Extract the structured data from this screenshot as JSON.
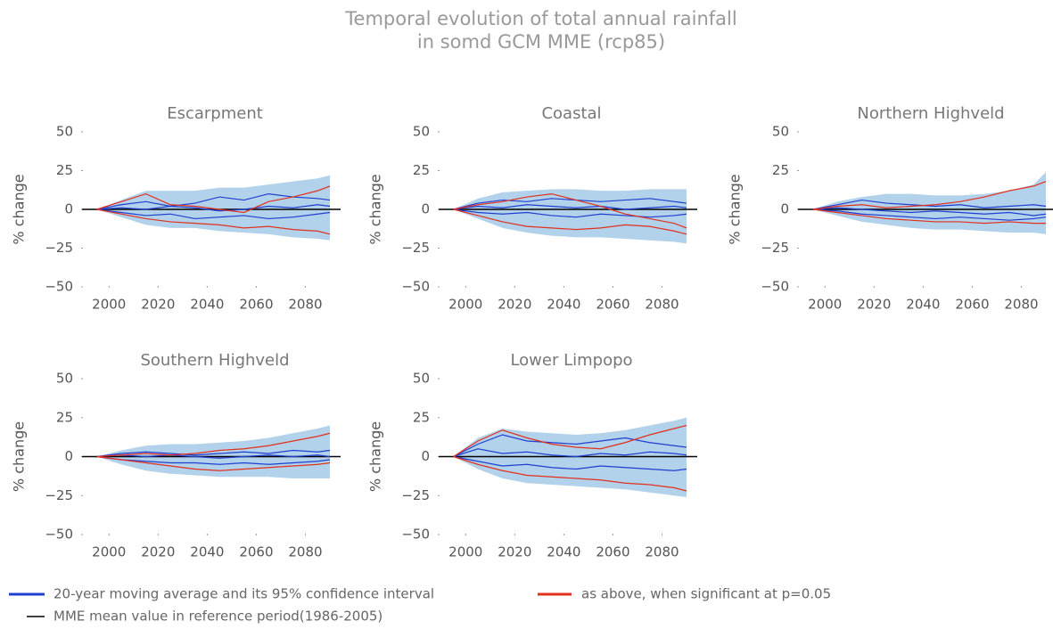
{
  "title": "Temporal evolution of total annual rainfall",
  "subtitle": "in somd GCM MME (rcp85)",
  "legend": [
    {
      "label": "20-year moving average and its 95% confidence interval",
      "color": "#1f3fd0"
    },
    {
      "label": "as above, when significant at p=0.05",
      "color": "#e0301e"
    },
    {
      "label": "MME mean value in reference period(1986-2005)",
      "color": "#000000"
    }
  ],
  "chart_data": [
    {
      "type": "line",
      "title": "Escarpment",
      "ylabel": "% change",
      "reference": 0,
      "xlim": [
        1989,
        2090
      ],
      "xticks": [
        2000,
        2020,
        2040,
        2060,
        2080
      ],
      "ylim": [
        -50,
        50
      ],
      "yticks": [
        {
          "value": -50,
          "label": "−50"
        },
        {
          "value": -25,
          "label": "−25"
        },
        0,
        25,
        50
      ],
      "x": [
        1995,
        2005,
        2015,
        2025,
        2035,
        2045,
        2055,
        2065,
        2075,
        2085,
        2090
      ],
      "band": {
        "color": "#7fb3dc",
        "lower": [
          0,
          -5,
          -10,
          -12,
          -12,
          -14,
          -15,
          -16,
          -18,
          -19,
          -20
        ],
        "upper": [
          0,
          6,
          12,
          12,
          12,
          14,
          14,
          16,
          18,
          20,
          22
        ]
      },
      "series": [
        {
          "color": "#1f3fd0",
          "values": [
            0,
            3,
            5,
            2,
            4,
            8,
            6,
            10,
            8,
            7,
            6
          ]
        },
        {
          "color": "#1f3fd0",
          "values": [
            0,
            -2,
            -4,
            -3,
            -6,
            -5,
            -4,
            -6,
            -5,
            -3,
            -2
          ]
        },
        {
          "color": "#1f3fd0",
          "values": [
            0,
            1,
            0,
            2,
            1,
            -1,
            0,
            2,
            1,
            3,
            2
          ]
        },
        {
          "color": "#e0301e",
          "values": [
            0,
            5,
            10,
            3,
            2,
            0,
            -2,
            5,
            8,
            12,
            15
          ]
        },
        {
          "color": "#e0301e",
          "values": [
            0,
            -3,
            -6,
            -8,
            -9,
            -10,
            -12,
            -11,
            -13,
            -14,
            -16
          ]
        }
      ]
    },
    {
      "type": "line",
      "title": "Coastal",
      "ylabel": "% change",
      "reference": 0,
      "xlim": [
        1989,
        2090
      ],
      "xticks": [
        2000,
        2020,
        2040,
        2060,
        2080
      ],
      "ylim": [
        -50,
        50
      ],
      "yticks": [
        {
          "value": -50,
          "label": "−50"
        },
        {
          "value": -25,
          "label": "−25"
        },
        0,
        25,
        50
      ],
      "x": [
        1995,
        2005,
        2015,
        2025,
        2035,
        2045,
        2055,
        2065,
        2075,
        2085,
        2090
      ],
      "band": {
        "color": "#7fb3dc",
        "lower": [
          0,
          -6,
          -12,
          -15,
          -17,
          -18,
          -18,
          -19,
          -20,
          -21,
          -22
        ],
        "upper": [
          0,
          7,
          11,
          12,
          13,
          13,
          12,
          12,
          13,
          13,
          13
        ]
      },
      "series": [
        {
          "color": "#1f3fd0",
          "values": [
            0,
            4,
            6,
            5,
            7,
            6,
            5,
            6,
            7,
            5,
            4
          ]
        },
        {
          "color": "#1f3fd0",
          "values": [
            0,
            -2,
            -3,
            -2,
            -4,
            -5,
            -3,
            -4,
            -5,
            -4,
            -3
          ]
        },
        {
          "color": "#1f3fd0",
          "values": [
            0,
            2,
            1,
            3,
            2,
            1,
            2,
            0,
            1,
            2,
            1
          ]
        },
        {
          "color": "#e0301e",
          "values": [
            0,
            -4,
            -8,
            -11,
            -12,
            -13,
            -12,
            -10,
            -11,
            -14,
            -16
          ]
        },
        {
          "color": "#e0301e",
          "values": [
            0,
            3,
            5,
            8,
            10,
            6,
            2,
            -3,
            -6,
            -9,
            -12
          ]
        }
      ]
    },
    {
      "type": "line",
      "title": "Northern Highveld",
      "ylabel": "% change",
      "reference": 0,
      "xlim": [
        1989,
        2090
      ],
      "xticks": [
        2000,
        2020,
        2040,
        2060,
        2080
      ],
      "ylim": [
        -50,
        50
      ],
      "yticks": [
        {
          "value": -50,
          "label": "−50"
        },
        {
          "value": -25,
          "label": "−25"
        },
        0,
        25,
        50
      ],
      "x": [
        1995,
        2005,
        2015,
        2025,
        2035,
        2045,
        2055,
        2065,
        2075,
        2085,
        2090
      ],
      "band": {
        "color": "#7fb3dc",
        "lower": [
          0,
          -4,
          -8,
          -10,
          -12,
          -13,
          -13,
          -14,
          -15,
          -15,
          -16
        ],
        "upper": [
          0,
          5,
          8,
          10,
          10,
          9,
          9,
          10,
          12,
          16,
          24
        ]
      },
      "series": [
        {
          "color": "#1f3fd0",
          "values": [
            0,
            3,
            6,
            4,
            3,
            2,
            3,
            1,
            2,
            3,
            2
          ]
        },
        {
          "color": "#1f3fd0",
          "values": [
            0,
            -1,
            -3,
            -4,
            -5,
            -6,
            -5,
            -6,
            -7,
            -6,
            -5
          ]
        },
        {
          "color": "#1f3fd0",
          "values": [
            0,
            1,
            0,
            -1,
            -2,
            -1,
            -2,
            -3,
            -2,
            -4,
            -3
          ]
        },
        {
          "color": "#e0301e",
          "values": [
            0,
            2,
            3,
            1,
            2,
            3,
            5,
            8,
            12,
            15,
            18
          ]
        },
        {
          "color": "#e0301e",
          "values": [
            0,
            -2,
            -4,
            -6,
            -7,
            -8,
            -8,
            -9,
            -8,
            -9,
            -9
          ]
        }
      ]
    },
    {
      "type": "line",
      "title": "Southern Highveld",
      "ylabel": "% change",
      "reference": 0,
      "xlim": [
        1989,
        2090
      ],
      "xticks": [
        2000,
        2020,
        2040,
        2060,
        2080
      ],
      "ylim": [
        -50,
        50
      ],
      "yticks": [
        {
          "value": -50,
          "label": "−50"
        },
        {
          "value": -25,
          "label": "−25"
        },
        0,
        25,
        50
      ],
      "x": [
        1995,
        2005,
        2015,
        2025,
        2035,
        2045,
        2055,
        2065,
        2075,
        2085,
        2090
      ],
      "band": {
        "color": "#7fb3dc",
        "lower": [
          0,
          -5,
          -9,
          -11,
          -12,
          -13,
          -13,
          -13,
          -14,
          -14,
          -14
        ],
        "upper": [
          0,
          4,
          7,
          8,
          8,
          9,
          10,
          12,
          15,
          18,
          20
        ]
      },
      "series": [
        {
          "color": "#1f3fd0",
          "values": [
            0,
            2,
            3,
            2,
            1,
            2,
            3,
            2,
            4,
            3,
            4
          ]
        },
        {
          "color": "#1f3fd0",
          "values": [
            0,
            -2,
            -3,
            -4,
            -4,
            -5,
            -4,
            -5,
            -4,
            -3,
            -2
          ]
        },
        {
          "color": "#1f3fd0",
          "values": [
            0,
            1,
            0,
            1,
            0,
            -1,
            0,
            1,
            0,
            1,
            0
          ]
        },
        {
          "color": "#e0301e",
          "values": [
            0,
            1,
            2,
            1,
            2,
            4,
            5,
            7,
            10,
            13,
            15
          ]
        },
        {
          "color": "#e0301e",
          "values": [
            0,
            -2,
            -4,
            -6,
            -8,
            -9,
            -8,
            -7,
            -6,
            -5,
            -4
          ]
        }
      ]
    },
    {
      "type": "line",
      "title": "Lower Limpopo",
      "ylabel": "% change",
      "reference": 0,
      "xlim": [
        1989,
        2090
      ],
      "xticks": [
        2000,
        2020,
        2040,
        2060,
        2080
      ],
      "ylim": [
        -50,
        50
      ],
      "yticks": [
        {
          "value": -50,
          "label": "−50"
        },
        {
          "value": -25,
          "label": "−25"
        },
        0,
        25,
        50
      ],
      "x": [
        1995,
        2005,
        2015,
        2025,
        2035,
        2045,
        2055,
        2065,
        2075,
        2085,
        2090
      ],
      "band": {
        "color": "#7fb3dc",
        "lower": [
          0,
          -8,
          -14,
          -17,
          -18,
          -19,
          -20,
          -21,
          -23,
          -25,
          -26
        ],
        "upper": [
          0,
          12,
          18,
          16,
          15,
          14,
          15,
          17,
          20,
          23,
          25
        ]
      },
      "series": [
        {
          "color": "#1f3fd0",
          "values": [
            0,
            8,
            14,
            10,
            9,
            8,
            10,
            12,
            9,
            7,
            6
          ]
        },
        {
          "color": "#1f3fd0",
          "values": [
            0,
            -3,
            -6,
            -5,
            -7,
            -8,
            -6,
            -7,
            -8,
            -9,
            -8
          ]
        },
        {
          "color": "#1f3fd0",
          "values": [
            0,
            5,
            2,
            3,
            1,
            0,
            2,
            1,
            3,
            2,
            1
          ]
        },
        {
          "color": "#e0301e",
          "values": [
            0,
            10,
            17,
            12,
            8,
            6,
            5,
            9,
            14,
            18,
            20
          ]
        },
        {
          "color": "#e0301e",
          "values": [
            0,
            -5,
            -9,
            -12,
            -13,
            -14,
            -15,
            -17,
            -18,
            -20,
            -22
          ]
        }
      ]
    }
  ]
}
